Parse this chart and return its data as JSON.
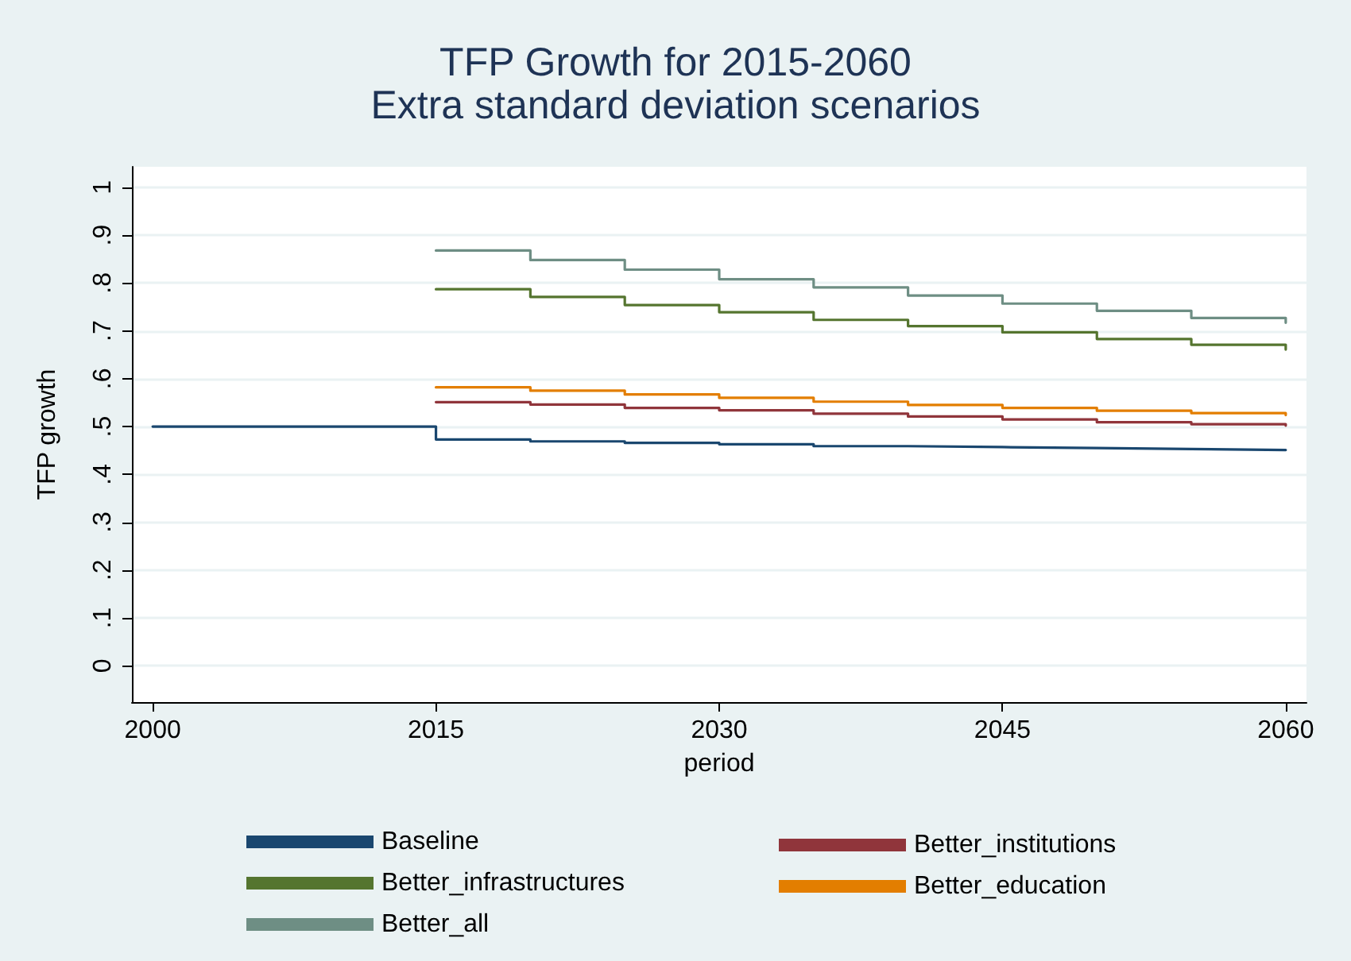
{
  "chart_data": {
    "type": "step",
    "title": "TFP Growth for 2015-2060",
    "subtitle": "Extra standard deviation scenarios",
    "xlabel": "period",
    "ylabel": "TFP growth",
    "series": [
      {
        "name": "Baseline",
        "color": "#1a476f",
        "x": [
          2000,
          2015,
          2020,
          2025,
          2030,
          2035,
          2040,
          2045,
          2050,
          2055,
          2060
        ],
        "values": [
          0.5,
          0.473,
          0.469,
          0.466,
          0.463,
          0.459,
          0.457,
          0.455,
          0.453,
          0.451,
          0.449
        ]
      },
      {
        "name": "Better_institutions",
        "color": "#90353b",
        "x": [
          2015,
          2020,
          2025,
          2030,
          2035,
          2040,
          2045,
          2050,
          2055,
          2060
        ],
        "values": [
          0.551,
          0.546,
          0.539,
          0.534,
          0.527,
          0.521,
          0.515,
          0.509,
          0.505,
          0.502
        ]
      },
      {
        "name": "Better_infrastructures",
        "color": "#55752f",
        "x": [
          2015,
          2020,
          2025,
          2030,
          2035,
          2040,
          2045,
          2050,
          2055,
          2060
        ],
        "values": [
          0.787,
          0.771,
          0.754,
          0.739,
          0.723,
          0.71,
          0.697,
          0.683,
          0.671,
          0.661
        ]
      },
      {
        "name": "Better_education",
        "color": "#e37e00",
        "x": [
          2015,
          2020,
          2025,
          2030,
          2035,
          2040,
          2045,
          2050,
          2055,
          2060
        ],
        "values": [
          0.582,
          0.575,
          0.567,
          0.56,
          0.552,
          0.545,
          0.539,
          0.533,
          0.528,
          0.524
        ]
      },
      {
        "name": "Better_all",
        "color": "#6e8e84",
        "x": [
          2015,
          2020,
          2025,
          2030,
          2035,
          2040,
          2045,
          2050,
          2055,
          2060
        ],
        "values": [
          0.868,
          0.848,
          0.828,
          0.808,
          0.791,
          0.774,
          0.757,
          0.742,
          0.727,
          0.717
        ]
      }
    ],
    "xlim": [
      1998.9,
      2061.1
    ],
    "xticks": [
      2000,
      2015,
      2030,
      2045,
      2060
    ],
    "ylim": [
      -0.076,
      1.043
    ],
    "yticks": [
      {
        "value": 0,
        "label": "0"
      },
      {
        "value": 0.1,
        "label": ".1"
      },
      {
        "value": 0.2,
        "label": ".2"
      },
      {
        "value": 0.3,
        "label": ".3"
      },
      {
        "value": 0.4,
        "label": ".4"
      },
      {
        "value": 0.5,
        "label": ".5"
      },
      {
        "value": 0.6,
        "label": ".6"
      },
      {
        "value": 0.7,
        "label": ".7"
      },
      {
        "value": 0.8,
        "label": ".8"
      },
      {
        "value": 0.9,
        "label": ".9"
      },
      {
        "value": 1,
        "label": "1"
      }
    ],
    "grid": "y",
    "legend": "bottom",
    "marker": "none",
    "line_style": "solid"
  }
}
